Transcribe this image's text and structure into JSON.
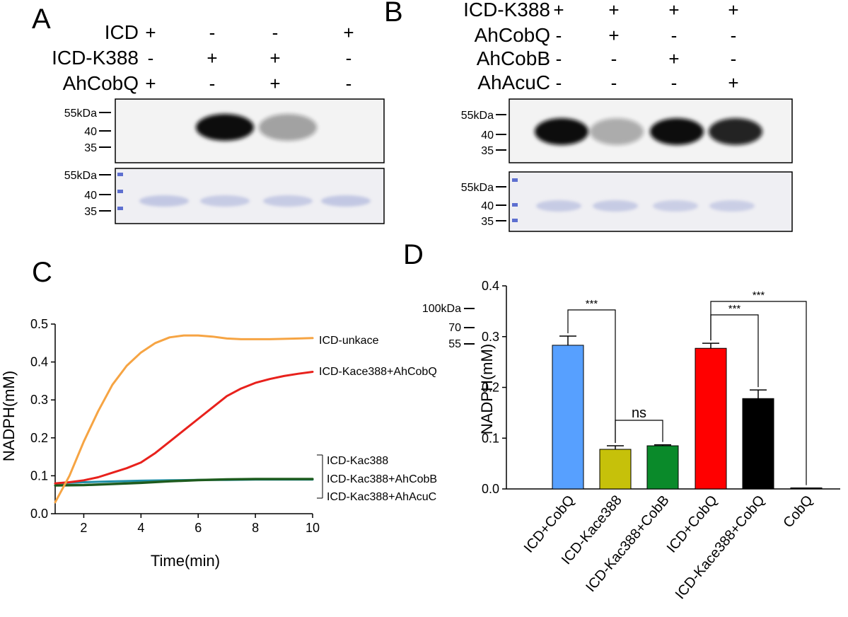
{
  "panels": {
    "a": "A",
    "b": "B",
    "c": "C",
    "d": "D"
  },
  "panel_a": {
    "rows": [
      {
        "label": "ICD",
        "signs": [
          "+",
          "-",
          "-",
          "+"
        ]
      },
      {
        "label": "ICD-K388",
        "signs": [
          "-",
          "+",
          "+",
          "-"
        ]
      },
      {
        "label": "AhCobQ",
        "signs": [
          "+",
          "-",
          "+",
          "-"
        ]
      }
    ],
    "blot_markers": [
      "55kDa",
      "40",
      "35"
    ],
    "gel_markers": [
      "55kDa",
      "40",
      "35"
    ],
    "blot_band_intensity": [
      0,
      1.0,
      0.35,
      0
    ],
    "gel_band_intensity": [
      0.55,
      0.5,
      0.5,
      0.55
    ],
    "colors": {
      "blot_bg": "#f2f2f2",
      "band": "#111111",
      "gel_bg": "#eeeef2",
      "gel_band": "#9fa8d6",
      "ladder": "#5d6fd0"
    }
  },
  "panel_b": {
    "rows": [
      {
        "label": "ICD-K388",
        "signs": [
          "+",
          "+",
          "+",
          "+"
        ]
      },
      {
        "label": "AhCobQ",
        "signs": [
          "-",
          "+",
          "-",
          "-"
        ]
      },
      {
        "label": "AhCobB",
        "signs": [
          "-",
          "-",
          "+",
          "-"
        ]
      },
      {
        "label": "AhAcuC",
        "signs": [
          "-",
          "-",
          "-",
          "+"
        ]
      }
    ],
    "blot_markers": [
      "55kDa",
      "40",
      "35"
    ],
    "gel_markers": [
      "55kDa",
      "40",
      "35"
    ],
    "blot_band_intensity": [
      1.0,
      0.3,
      1.0,
      0.9
    ],
    "gel_band_intensity": [
      0.5,
      0.5,
      0.45,
      0.45
    ]
  },
  "chart_data": [
    {
      "type": "line",
      "title": "",
      "xlabel": "Time(min)",
      "ylabel": "NADPH(mM)",
      "xlim": [
        1,
        10
      ],
      "ylim": [
        0,
        0.5
      ],
      "xticks": [
        2,
        4,
        6,
        8,
        10
      ],
      "yticks": [
        0.0,
        0.1,
        0.2,
        0.3,
        0.4,
        0.5
      ],
      "ytick_labels": [
        "0.0",
        "0.1",
        "0.2",
        "0.3",
        "0.4",
        "0.5"
      ],
      "grid": false,
      "series": [
        {
          "name": "ICD-unkace",
          "color": "#f6a443",
          "x": [
            1,
            1.5,
            2,
            2.5,
            3,
            3.5,
            4,
            4.5,
            5,
            5.5,
            6,
            6.5,
            7,
            7.5,
            8,
            8.5,
            9,
            9.5,
            10
          ],
          "y": [
            0.03,
            0.1,
            0.19,
            0.27,
            0.34,
            0.39,
            0.425,
            0.45,
            0.465,
            0.47,
            0.47,
            0.467,
            0.462,
            0.46,
            0.46,
            0.46,
            0.461,
            0.462,
            0.463
          ]
        },
        {
          "name": "ICD-Kace388+AhCobQ",
          "color": "#e8211c",
          "x": [
            1,
            1.5,
            2,
            2.5,
            3,
            3.5,
            4,
            4.5,
            5,
            5.5,
            6,
            6.5,
            7,
            7.5,
            8,
            8.5,
            9,
            9.5,
            10
          ],
          "y": [
            0.08,
            0.083,
            0.088,
            0.096,
            0.108,
            0.12,
            0.135,
            0.16,
            0.19,
            0.22,
            0.25,
            0.28,
            0.31,
            0.33,
            0.345,
            0.355,
            0.363,
            0.369,
            0.374
          ]
        },
        {
          "name": "ICD-Kac388",
          "color": "#1f8fa8",
          "x": [
            1,
            2,
            3,
            4,
            5,
            6,
            7,
            8,
            9,
            10
          ],
          "y": [
            0.08,
            0.083,
            0.085,
            0.087,
            0.088,
            0.089,
            0.089,
            0.09,
            0.09,
            0.09
          ]
        },
        {
          "name": "ICD-Kac388+AhCobB",
          "color": "#2f6e2f",
          "x": [
            1,
            2,
            3,
            4,
            5,
            6,
            7,
            8,
            9,
            10
          ],
          "y": [
            0.075,
            0.076,
            0.079,
            0.082,
            0.086,
            0.089,
            0.091,
            0.092,
            0.092,
            0.092
          ]
        },
        {
          "name": "ICD-Kac388+AhAcuC",
          "color": "#1d5a1d",
          "x": [
            1,
            2,
            3,
            4,
            5,
            6,
            7,
            8,
            9,
            10
          ],
          "y": [
            0.074,
            0.075,
            0.078,
            0.081,
            0.085,
            0.088,
            0.09,
            0.091,
            0.091,
            0.091
          ]
        }
      ]
    },
    {
      "type": "bar",
      "title": "",
      "xlabel": "",
      "ylabel": "NADPH(mM)",
      "ylim": [
        0,
        0.4
      ],
      "yticks": [
        0.0,
        0.1,
        0.2,
        0.3,
        0.4
      ],
      "ytick_labels": [
        "0.0",
        "0.1",
        "0.2",
        "0.3",
        "0.4"
      ],
      "categories": [
        "ICD+CobQ",
        "ICD-Kace388",
        "ICD-Kac388+CobB",
        "ICD+CobQ",
        "ICD-Kace388+CobQ",
        "CobQ"
      ],
      "values": [
        0.283,
        0.078,
        0.085,
        0.277,
        0.178,
        0.002
      ],
      "errors": [
        0.018,
        0.007,
        0.002,
        0.01,
        0.017,
        0.0
      ],
      "colors": [
        "#57a0ff",
        "#c6c10a",
        "#0a8a2a",
        "#ff0000",
        "#000000",
        "#000000"
      ],
      "significance": [
        {
          "from": 0,
          "to": 1,
          "label": "***"
        },
        {
          "from": 1,
          "to": 2,
          "label": "ns"
        },
        {
          "from": 3,
          "to": 4,
          "label": "***"
        },
        {
          "from": 3,
          "to": 5,
          "label": "***"
        }
      ],
      "overlay_markers": [
        "100kDa",
        "70",
        "55"
      ]
    }
  ]
}
